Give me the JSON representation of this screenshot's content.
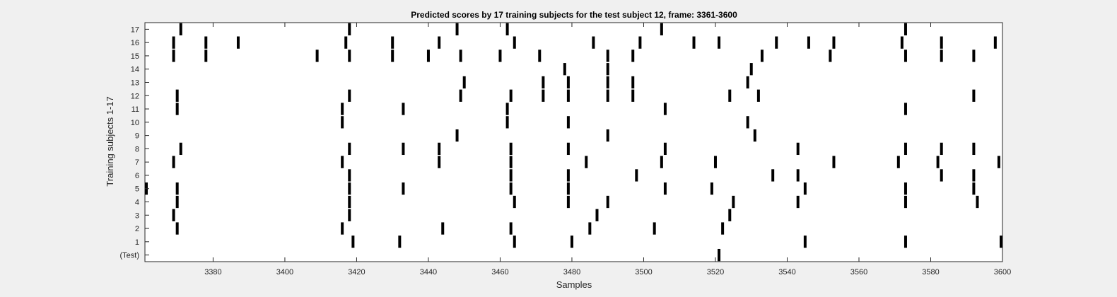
{
  "chart_data": {
    "type": "raster",
    "title": "Predicted scores by 17 training subjects for the test subject 12, frame: 3361-3600",
    "xlabel": "Samples",
    "ylabel": "Training subjects 1-17",
    "xlim": [
      3361,
      3600
    ],
    "x_ticks": [
      3380,
      3400,
      3420,
      3440,
      3460,
      3480,
      3500,
      3520,
      3540,
      3560,
      3580,
      3600
    ],
    "y_tick_labels": [
      "(Test)",
      "1",
      "2",
      "3",
      "4",
      "5",
      "6",
      "7",
      "8",
      "9",
      "10",
      "11",
      "12",
      "13",
      "14",
      "15",
      "16",
      "17"
    ],
    "grid": false,
    "colors": {
      "mark": "#000000",
      "plot_bg": "#ffffff",
      "figure_bg": "#f0f0f0"
    },
    "series": [
      {
        "row": "(Test)",
        "x": [
          3521
        ]
      },
      {
        "row": "1",
        "x": [
          3419,
          3432,
          3464,
          3480,
          3545,
          3573,
          3600
        ]
      },
      {
        "row": "2",
        "x": [
          3370,
          3416,
          3444,
          3463,
          3485,
          3503,
          3522
        ]
      },
      {
        "row": "3",
        "x": [
          3369,
          3418,
          3487,
          3524
        ]
      },
      {
        "row": "4",
        "x": [
          3370,
          3418,
          3464,
          3479,
          3490,
          3525,
          3543,
          3573,
          3593
        ]
      },
      {
        "row": "5",
        "x": [
          3361,
          3370,
          3418,
          3433,
          3463,
          3479,
          3506,
          3519,
          3545,
          3573,
          3592
        ]
      },
      {
        "row": "6",
        "x": [
          3418,
          3463,
          3479,
          3498,
          3536,
          3543,
          3583,
          3592
        ]
      },
      {
        "row": "7",
        "x": [
          3369,
          3416,
          3443,
          3463,
          3484,
          3505,
          3520,
          3553,
          3571,
          3582,
          3599
        ]
      },
      {
        "row": "8",
        "x": [
          3371,
          3418,
          3433,
          3443,
          3463,
          3479,
          3506,
          3543,
          3573,
          3583,
          3592
        ]
      },
      {
        "row": "9",
        "x": [
          3448,
          3490,
          3531
        ]
      },
      {
        "row": "10",
        "x": [
          3416,
          3462,
          3479,
          3529
        ]
      },
      {
        "row": "11",
        "x": [
          3370,
          3416,
          3433,
          3462,
          3506,
          3573
        ]
      },
      {
        "row": "12",
        "x": [
          3370,
          3418,
          3449,
          3463,
          3472,
          3479,
          3490,
          3497,
          3524,
          3532,
          3592
        ]
      },
      {
        "row": "13",
        "x": [
          3450,
          3472,
          3479,
          3490,
          3497,
          3529
        ]
      },
      {
        "row": "14",
        "x": [
          3478,
          3490,
          3530
        ]
      },
      {
        "row": "15",
        "x": [
          3369,
          3378,
          3409,
          3418,
          3430,
          3440,
          3449,
          3460,
          3471,
          3490,
          3497,
          3533,
          3552,
          3573,
          3583,
          3592
        ]
      },
      {
        "row": "16",
        "x": [
          3369,
          3378,
          3387,
          3417,
          3430,
          3443,
          3464,
          3486,
          3499,
          3514,
          3521,
          3537,
          3546,
          3553,
          3572,
          3583,
          3598
        ]
      },
      {
        "row": "17",
        "x": [
          3371,
          3418,
          3448,
          3462,
          3505,
          3573
        ]
      }
    ]
  }
}
